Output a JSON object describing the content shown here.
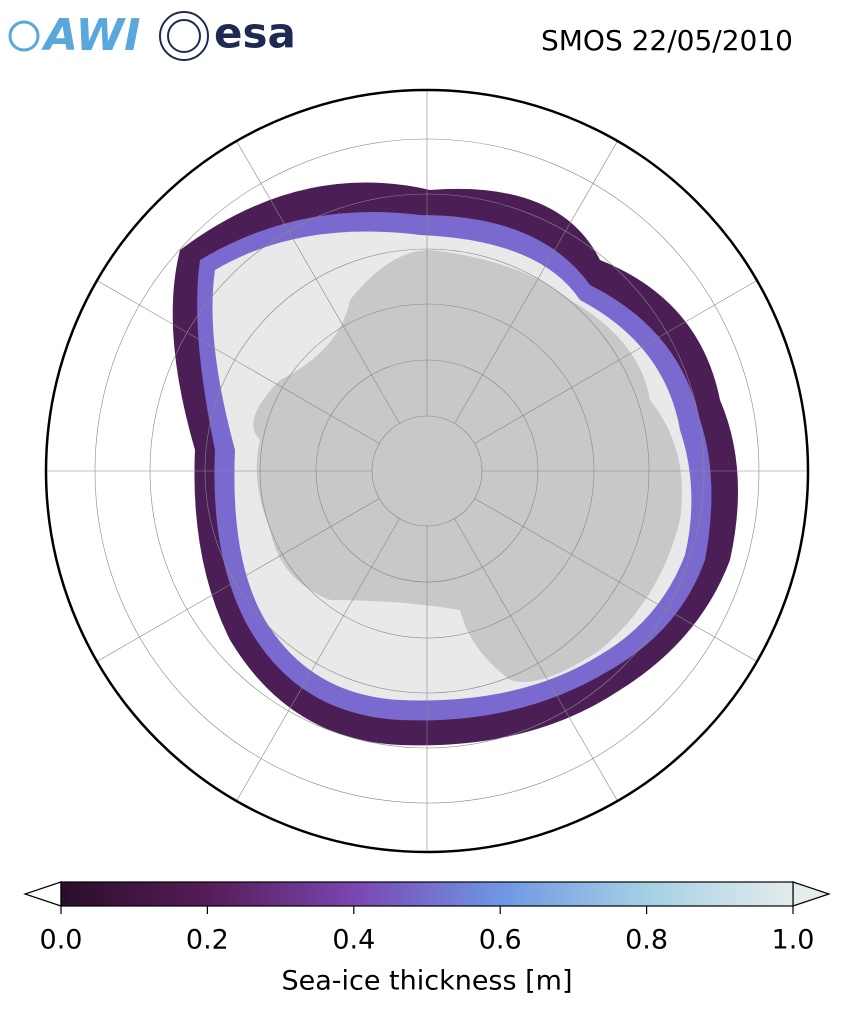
{
  "header": {
    "awi_logo": "AWI",
    "esa_logo": "esa",
    "title": "SMOS 22/05/2010"
  },
  "colorbar": {
    "label": "Sea-ice thickness [m]",
    "lim": [
      0,
      1
    ],
    "ticks": [
      {
        "value": 0,
        "label": "0.0"
      },
      0.2,
      0.4,
      0.6,
      0.8,
      {
        "value": 1,
        "label": "1.0"
      }
    ],
    "colors": [
      "#2b0e2a",
      "#561c58",
      "#7a46b0",
      "#6f96e4",
      "#a4d0e4",
      "#e4ecec"
    ],
    "extend_low_color": "#ffffff",
    "extend_high_color": "#e4ecec"
  }
}
